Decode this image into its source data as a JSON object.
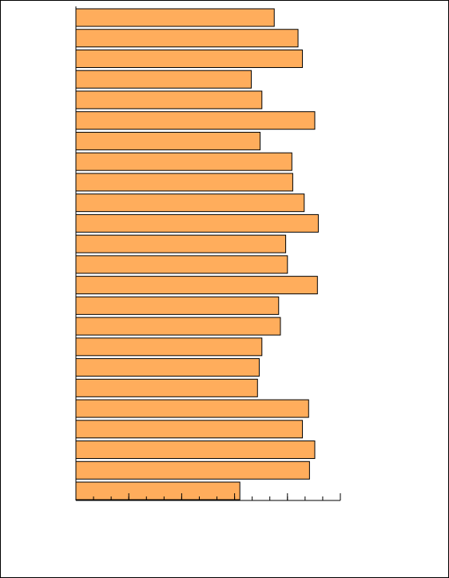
{
  "chart_data": {
    "type": "barh",
    "categories": [
      null,
      null,
      null,
      null,
      null,
      null,
      null,
      null,
      null,
      null,
      null,
      null,
      null,
      null,
      null,
      null,
      null,
      null,
      null,
      null,
      null,
      null,
      null,
      null
    ],
    "values": [
      22.5,
      25.2,
      25.7,
      19.9,
      21.1,
      27.1,
      20.9,
      24.5,
      24.6,
      25.9,
      27.5,
      23.8,
      24.0,
      27.4,
      23.0,
      23.2,
      21.1,
      20.8,
      20.6,
      26.4,
      25.7,
      27.1,
      26.5,
      18.6
    ],
    "color": "#ffad5c",
    "xlim": [
      0,
      30
    ],
    "xticks": [
      0,
      2,
      4,
      6,
      8,
      10,
      12,
      14,
      16,
      18,
      20,
      22,
      24,
      26,
      28,
      30
    ],
    "major_xticks": [
      0,
      6,
      12,
      18,
      24,
      30
    ]
  }
}
